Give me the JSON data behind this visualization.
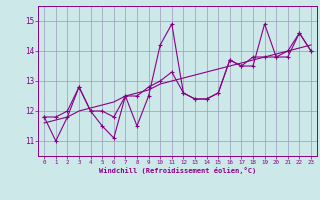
{
  "xlabel": "Windchill (Refroidissement éolien,°C)",
  "xlim": [
    -0.5,
    23.5
  ],
  "ylim": [
    10.5,
    15.5
  ],
  "yticks": [
    11,
    12,
    13,
    14,
    15
  ],
  "xticks": [
    0,
    1,
    2,
    3,
    4,
    5,
    6,
    7,
    8,
    9,
    10,
    11,
    12,
    13,
    14,
    15,
    16,
    17,
    18,
    19,
    20,
    21,
    22,
    23
  ],
  "bg_color": "#cce8e8",
  "line_color": "#880088",
  "grid_color": "#9999bb",
  "series_jagged": [
    11.8,
    11.0,
    11.8,
    12.8,
    12.0,
    11.5,
    11.1,
    12.5,
    11.5,
    12.5,
    14.2,
    14.9,
    12.6,
    12.4,
    12.4,
    12.6,
    13.7,
    13.5,
    13.5,
    14.9,
    13.8,
    13.8,
    14.6,
    14.0
  ],
  "series_smooth": [
    11.8,
    11.8,
    12.0,
    12.8,
    12.0,
    12.0,
    11.8,
    12.5,
    12.5,
    12.8,
    13.0,
    13.3,
    12.6,
    12.4,
    12.4,
    12.6,
    13.7,
    13.5,
    13.8,
    13.8,
    13.8,
    14.0,
    14.6,
    14.0
  ],
  "series_trend": [
    11.6,
    11.7,
    11.8,
    12.0,
    12.1,
    12.2,
    12.3,
    12.5,
    12.6,
    12.7,
    12.9,
    13.0,
    13.1,
    13.2,
    13.3,
    13.4,
    13.5,
    13.6,
    13.7,
    13.8,
    13.9,
    14.0,
    14.1,
    14.2
  ]
}
